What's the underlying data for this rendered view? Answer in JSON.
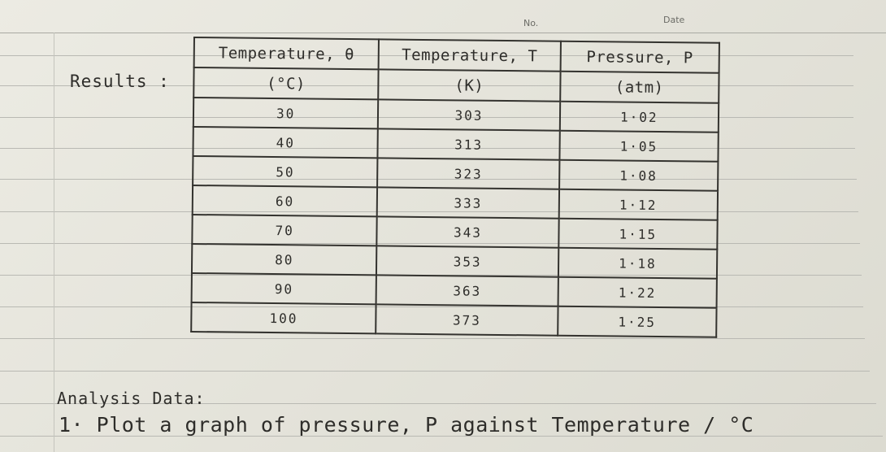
{
  "header": {
    "no_label": "No.",
    "date_label": "Date"
  },
  "results_label": "Results :",
  "table": {
    "headers": [
      {
        "line1": "Temperature, θ",
        "line2": "(°C)"
      },
      {
        "line1": "Temperature, T",
        "line2": "(K)"
      },
      {
        "line1": "Pressure, P",
        "line2": "(atm)"
      }
    ],
    "rows": [
      [
        "30",
        "303",
        "1·02"
      ],
      [
        "40",
        "313",
        "1·05"
      ],
      [
        "50",
        "323",
        "1·08"
      ],
      [
        "60",
        "333",
        "1·12"
      ],
      [
        "70",
        "343",
        "1·15"
      ],
      [
        "80",
        "353",
        "1·18"
      ],
      [
        "90",
        "363",
        "1·22"
      ],
      [
        "100",
        "373",
        "1·25"
      ]
    ]
  },
  "analysis_label": "Analysis Data:",
  "task_1": "1· Plot a graph of pressure, P against Temperature / °C"
}
